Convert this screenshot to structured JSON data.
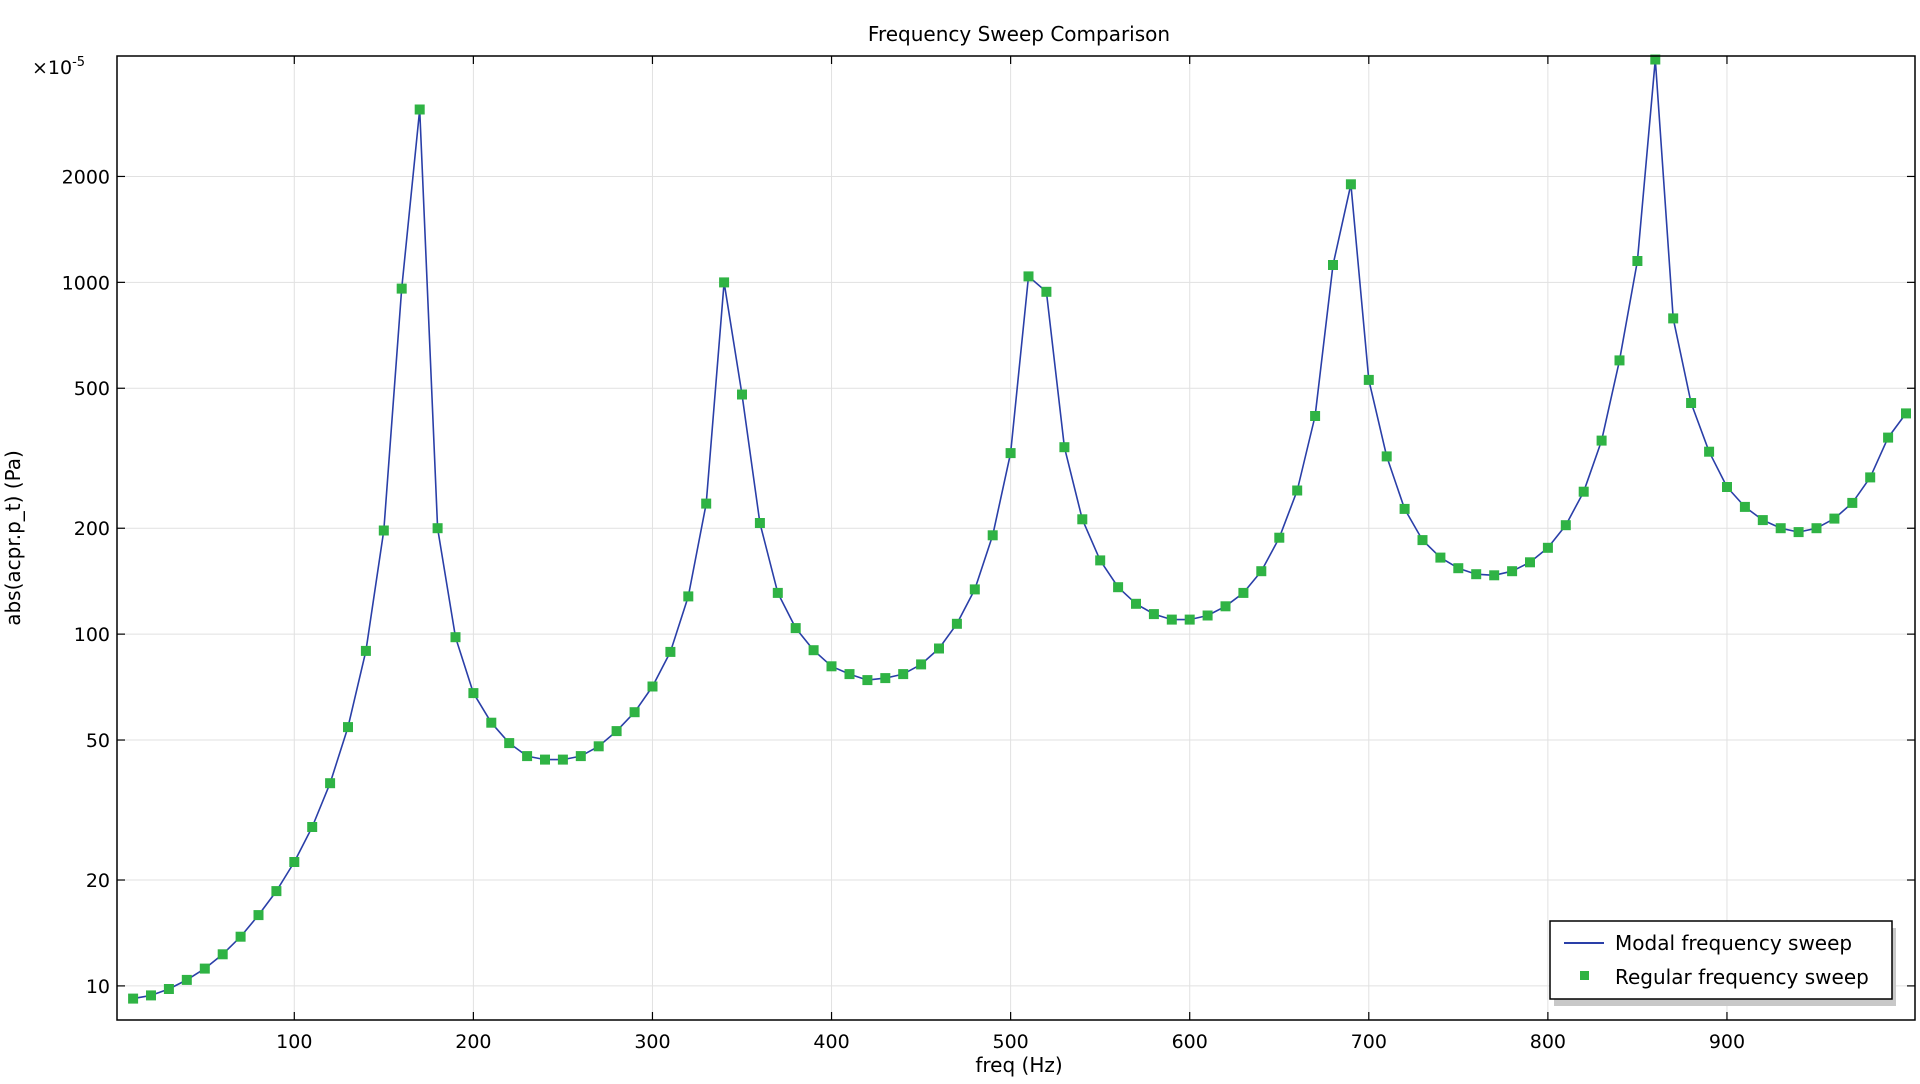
{
  "chart_data": {
    "type": "line",
    "title": "Frequency Sweep Comparison",
    "xlabel": "freq (Hz)",
    "ylabel": "abs(acpr.p_t) (Pa)",
    "y_multiplier": "×10",
    "y_multiplier_exp": "-5",
    "y_scale": "log",
    "xlim": [
      1,
      1005
    ],
    "ylim": [
      8,
      4400
    ],
    "x_ticks": [
      100,
      200,
      300,
      400,
      500,
      600,
      700,
      800,
      900
    ],
    "y_ticks": [
      10,
      20,
      50,
      100,
      200,
      500,
      1000,
      2000
    ],
    "grid": true,
    "legend_position": "bottom-right",
    "colors": {
      "modal": "#2a3fa8",
      "regular": "#2fb344"
    },
    "x": [
      10,
      20,
      30,
      40,
      50,
      60,
      70,
      80,
      90,
      100,
      110,
      120,
      130,
      140,
      150,
      160,
      170,
      180,
      190,
      200,
      210,
      220,
      230,
      240,
      250,
      260,
      270,
      280,
      290,
      300,
      310,
      320,
      330,
      340,
      350,
      360,
      370,
      380,
      390,
      400,
      410,
      420,
      430,
      440,
      450,
      460,
      470,
      480,
      490,
      500,
      510,
      520,
      530,
      540,
      550,
      560,
      570,
      580,
      590,
      600,
      610,
      620,
      630,
      640,
      650,
      660,
      670,
      680,
      690,
      700,
      710,
      720,
      730,
      740,
      750,
      760,
      770,
      780,
      790,
      800,
      810,
      820,
      830,
      840,
      850,
      860,
      870,
      880,
      890,
      900,
      910,
      920,
      930,
      940,
      950,
      960,
      970,
      980,
      990,
      1000
    ],
    "series": [
      {
        "name": "Modal frequency sweep",
        "style": "line",
        "values": [
          9.2,
          9.4,
          9.8,
          10.4,
          11.2,
          12.3,
          13.8,
          15.9,
          18.6,
          22.5,
          28.3,
          37.7,
          54.4,
          89.6,
          197,
          960,
          3100,
          200,
          98,
          68,
          56,
          49,
          45,
          44,
          44,
          45,
          48,
          53,
          60,
          71,
          89,
          128,
          235,
          1000,
          480,
          207,
          131,
          104,
          90,
          81,
          77,
          74,
          75,
          77,
          82,
          91,
          107,
          134,
          191,
          327,
          1040,
          940,
          340,
          212,
          162,
          136,
          122,
          114,
          110,
          110,
          113,
          120,
          131,
          151,
          188,
          256,
          417,
          1120,
          1900,
          528,
          320,
          227,
          185,
          165,
          154,
          148,
          147,
          151,
          160,
          176,
          204,
          254,
          355,
          600,
          1150,
          4300,
          790,
          454,
          330,
          262,
          230,
          211,
          200,
          195,
          200,
          213,
          236,
          279,
          362,
          424
        ]
      },
      {
        "name": "Regular frequency sweep",
        "style": "marker",
        "values": [
          9.2,
          9.4,
          9.8,
          10.4,
          11.2,
          12.3,
          13.8,
          15.9,
          18.6,
          22.5,
          28.3,
          37.7,
          54.4,
          89.6,
          197,
          960,
          3100,
          200,
          98,
          68,
          56,
          49,
          45,
          44,
          44,
          45,
          48,
          53,
          60,
          71,
          89,
          128,
          235,
          1000,
          480,
          207,
          131,
          104,
          90,
          81,
          77,
          74,
          75,
          77,
          82,
          91,
          107,
          134,
          191,
          327,
          1040,
          940,
          340,
          212,
          162,
          136,
          122,
          114,
          110,
          110,
          113,
          120,
          131,
          151,
          188,
          256,
          417,
          1120,
          1900,
          528,
          320,
          227,
          185,
          165,
          154,
          148,
          147,
          151,
          160,
          176,
          204,
          254,
          355,
          600,
          1150,
          4300,
          790,
          454,
          330,
          262,
          230,
          211,
          200,
          195,
          200,
          213,
          236,
          279,
          362,
          424
        ]
      }
    ]
  }
}
